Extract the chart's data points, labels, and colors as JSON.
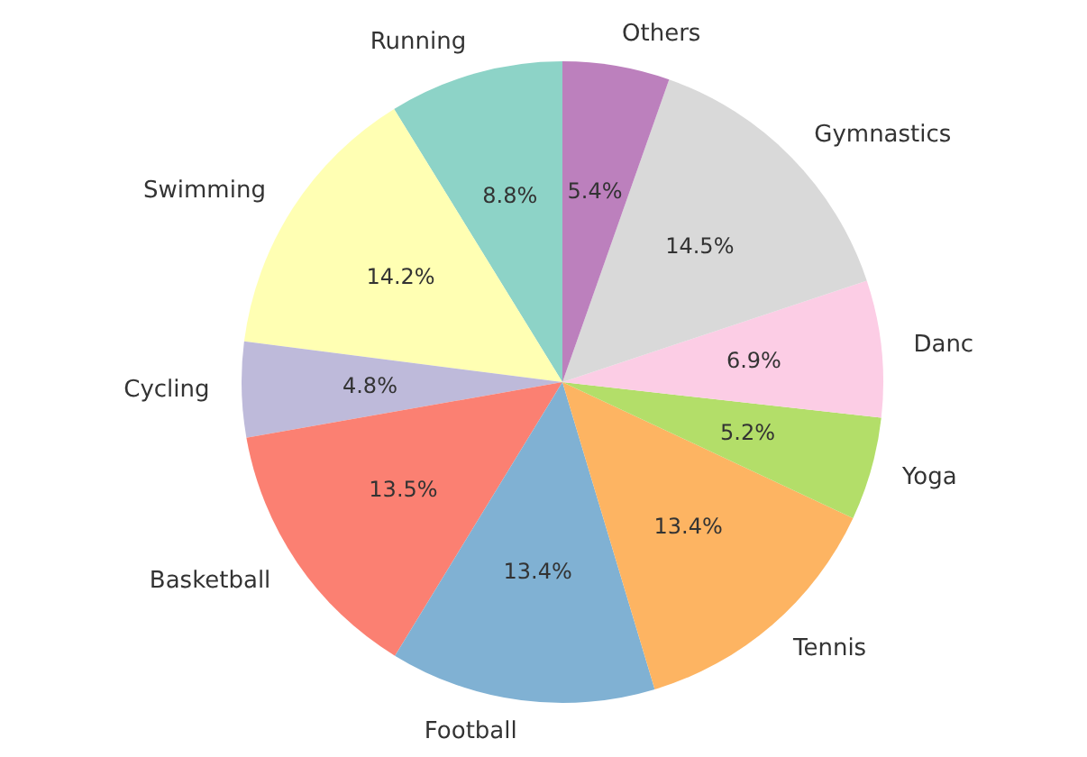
{
  "chart_data": {
    "type": "pie",
    "categories": [
      "Running",
      "Swimming",
      "Cycling",
      "Basketball",
      "Football",
      "Tennis",
      "Yoga",
      "Danc",
      "Gymnastics",
      "Others"
    ],
    "values": [
      8.8,
      14.2,
      4.8,
      13.5,
      13.4,
      13.4,
      5.2,
      6.9,
      14.5,
      5.4
    ],
    "colors": [
      "#8dd3c7",
      "#ffffb3",
      "#bebada",
      "#fb8072",
      "#80b1d3",
      "#fdb462",
      "#b3de69",
      "#fccde5",
      "#d9d9d9",
      "#bc80bd"
    ],
    "value_labels": [
      "8.8%",
      "14.2%",
      "4.8%",
      "13.5%",
      "13.4%",
      "13.4%",
      "5.2%",
      "6.9%",
      "14.5%",
      "5.4%"
    ]
  }
}
